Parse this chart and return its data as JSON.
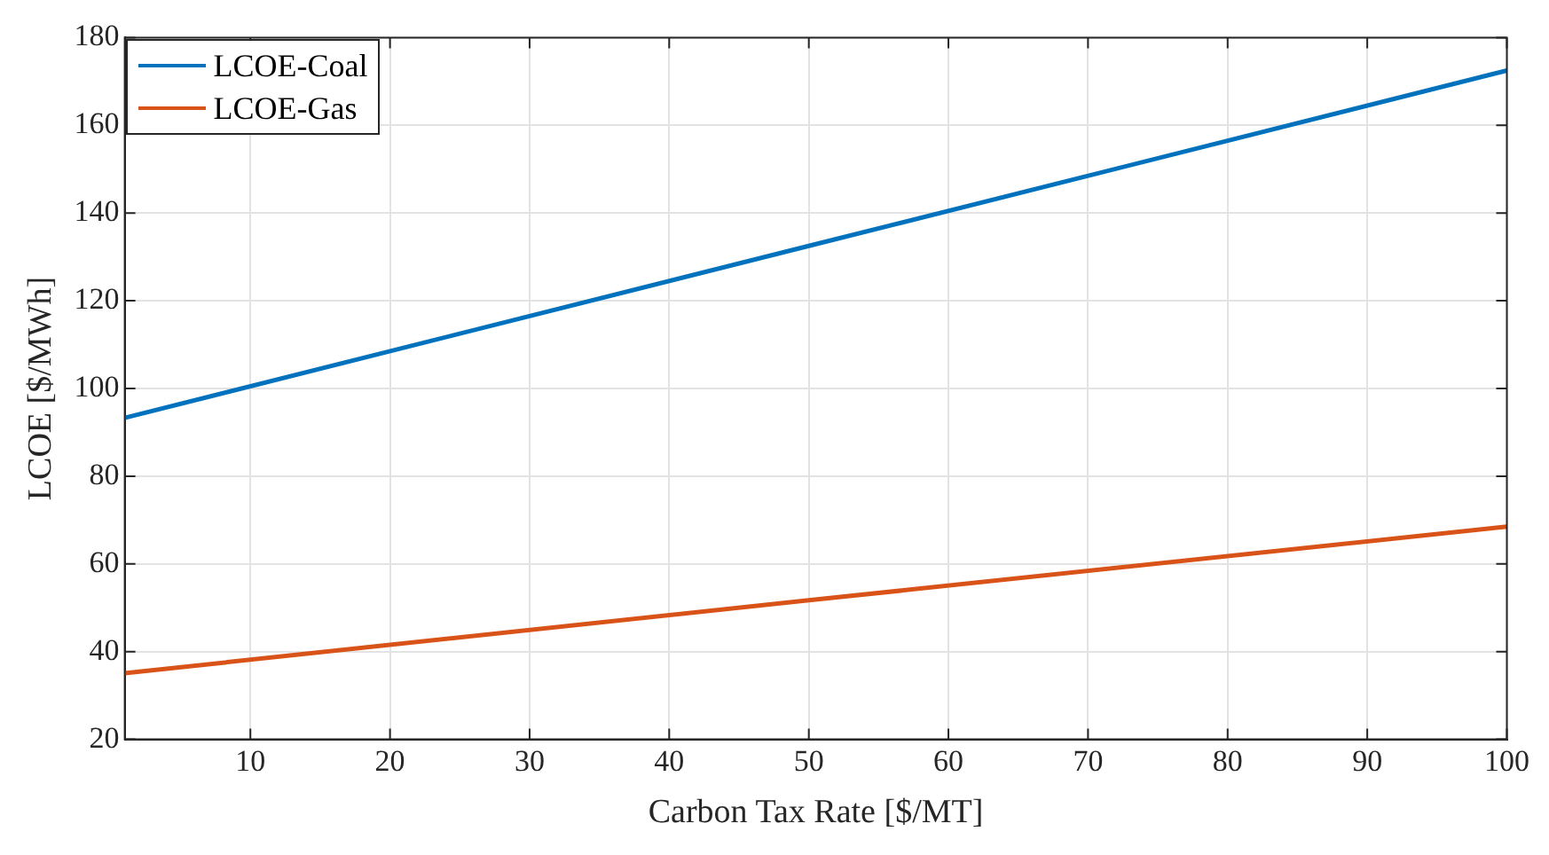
{
  "chart_data": {
    "type": "line",
    "xlabel": "Carbon Tax Rate [$/MT]",
    "ylabel": "LCOE [$/MWh]",
    "series": [
      {
        "name": "LCOE-Coal",
        "color": "#0072bd",
        "x": [
          1,
          50,
          100
        ],
        "values": [
          93.3,
          132.5,
          172.5
        ]
      },
      {
        "name": "LCOE-Gas",
        "color": "#d95319",
        "x": [
          1,
          50,
          100
        ],
        "values": [
          35.1,
          51.7,
          68.5
        ]
      }
    ],
    "xlim": [
      1,
      100
    ],
    "xticks": [
      10,
      20,
      30,
      40,
      50,
      60,
      70,
      80,
      90,
      100
    ],
    "ylim": [
      20,
      180
    ],
    "yticks": [
      20,
      40,
      60,
      80,
      100,
      120,
      140,
      160,
      180
    ],
    "grid": true,
    "legend": "top left",
    "marker": "none",
    "line_style": "solid"
  }
}
